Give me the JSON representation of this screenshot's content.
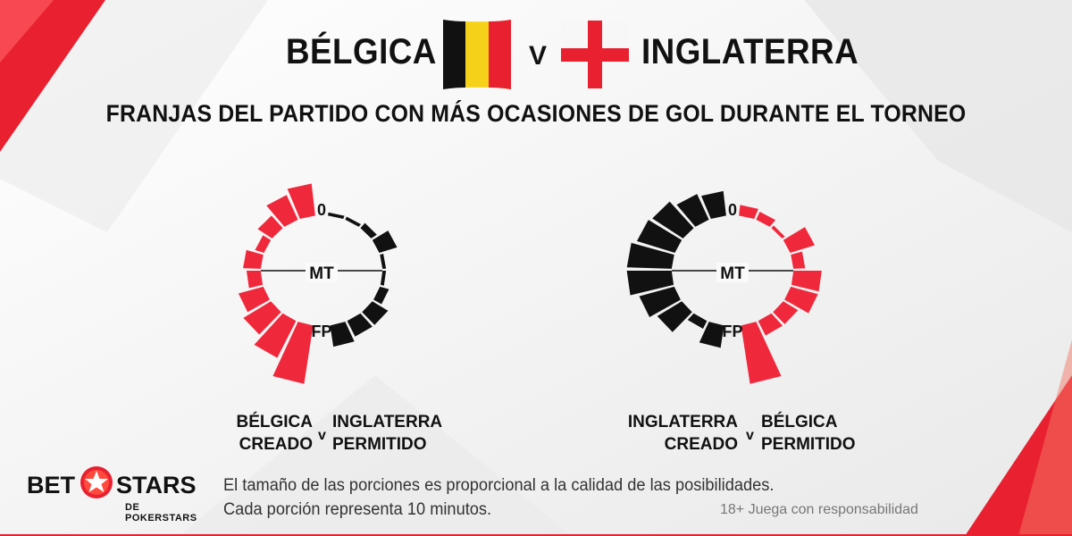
{
  "header": {
    "team_left": "BÉLGICA",
    "team_right": "INGLATERRA",
    "vs": "V",
    "subtitle": "FRANJAS DEL PARTIDO CON MÁS OCASIONES DE GOL DURANTE EL TORNEO"
  },
  "colors": {
    "red": "#f0283c",
    "black": "#111111",
    "accent": "#e8202f"
  },
  "chart_data": [
    {
      "type": "radial-bar",
      "center_labels": {
        "start": "0",
        "half": "MT",
        "end": "FP"
      },
      "legend": {
        "left_team": "BÉLGICA",
        "left_role": "CREADO",
        "vs": "v",
        "right_team": "INGLATERRA",
        "right_role": "PERMITIDO"
      },
      "series": [
        {
          "side": "left",
          "color": "red",
          "segments_10min": [
            3,
            2.5,
            1.5,
            0.8,
            1.5,
            1.2,
            2.2,
            2.8,
            3.8,
            5.5
          ]
        },
        {
          "side": "right",
          "color": "black",
          "segments_10min": [
            0.3,
            0.3,
            0.6,
            1.6,
            0.3,
            0.3,
            0.8,
            1.6,
            1.6,
            2.0
          ]
        }
      ]
    },
    {
      "type": "radial-bar",
      "center_labels": {
        "start": "0",
        "half": "MT",
        "end": "FP"
      },
      "legend": {
        "left_team": "INGLATERRA",
        "left_role": "CREADO",
        "vs": "v",
        "right_team": "BÉLGICA",
        "right_role": "PERMITIDO"
      },
      "series": [
        {
          "side": "left",
          "color": "black",
          "segments_10min": [
            2.3,
            2.6,
            3.2,
            3.4,
            3.8,
            3.8,
            3.1,
            2.5,
            0.8,
            2.1
          ]
        },
        {
          "side": "right",
          "color": "red",
          "segments_10min": [
            1.0,
            0.8,
            0.3,
            2.2,
            1.0,
            2.4,
            2.4,
            1.5,
            1.5,
            5.5
          ]
        }
      ]
    }
  ],
  "footer": {
    "note_line1": "El tamaño de las porciones es proporcional a la calidad de las posibilidades.",
    "note_line2": "Cada porción representa 10 minutos.",
    "responsible": "18+ Juega con responsabilidad",
    "logo_left": "BET",
    "logo_right": "STARS",
    "logo_sub": "DE POKERSTARS"
  }
}
